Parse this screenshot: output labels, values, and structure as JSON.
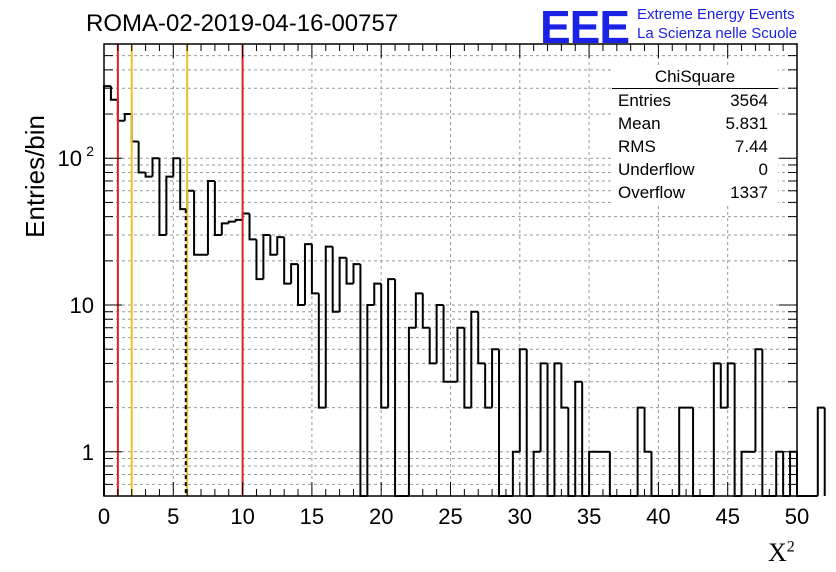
{
  "title": "ROMA-02-2019-04-16-00757",
  "logo": {
    "mark": "EEE",
    "line1": "Extreme Energy Events",
    "line2": "La Scienza nelle Scuole",
    "color": "#1a22e6"
  },
  "stats_box": {
    "title": "ChiSquare",
    "rows": [
      {
        "key": "Entries",
        "value": "3564"
      },
      {
        "key": "Mean",
        "value": "5.831"
      },
      {
        "key": "RMS",
        "value": "7.44"
      },
      {
        "key": "Underflow",
        "value": "0"
      },
      {
        "key": "Overflow",
        "value": "1337"
      }
    ]
  },
  "axes": {
    "ylabel": "Entries/bin",
    "xlabel": "X",
    "xlabel_sup": "2"
  },
  "chart_data": {
    "type": "bar",
    "subtype": "histogram-step",
    "y_scale": "log",
    "xlim": [
      0,
      50
    ],
    "ylim": [
      0.5,
      600
    ],
    "x_ticks": [
      0,
      5,
      10,
      15,
      20,
      25,
      30,
      35,
      40,
      45,
      50
    ],
    "y_tick_labels": [
      {
        "value": 1,
        "label": "1"
      },
      {
        "value": 10,
        "label": "10"
      },
      {
        "value": 100,
        "label": "10",
        "exponent": "2"
      }
    ],
    "grid": true,
    "bin_width": 0.5,
    "bin_start": 0,
    "values": [
      310,
      250,
      180,
      200,
      130,
      80,
      75,
      100,
      30,
      75,
      100,
      45,
      60,
      22,
      22,
      70,
      30,
      36,
      37,
      38,
      42,
      28,
      15,
      30,
      22,
      29,
      14,
      19,
      10,
      26,
      12,
      2,
      25,
      9,
      21,
      14,
      19,
      0,
      10,
      14,
      2,
      15,
      0,
      0,
      7,
      12,
      7,
      4,
      10,
      3,
      3,
      7,
      2,
      9,
      4,
      2,
      5,
      0,
      0,
      1,
      5,
      0,
      1,
      4,
      0,
      4,
      2,
      0,
      3,
      0,
      1,
      1,
      1,
      0,
      0,
      0,
      0,
      2,
      1,
      0,
      0,
      0,
      0,
      2,
      2,
      0,
      0,
      0,
      4,
      2,
      4,
      0,
      1,
      1,
      5,
      0,
      0,
      1,
      0,
      1,
      0,
      0,
      0,
      2
    ],
    "vertical_lines": [
      {
        "x": 1,
        "color": "#e02020",
        "style": "solid"
      },
      {
        "x": 2,
        "color": "#f0c020",
        "style": "solid"
      },
      {
        "x": 6,
        "color": "#f0c020",
        "style": "solid"
      },
      {
        "x": 10,
        "color": "#e02020",
        "style": "solid"
      },
      {
        "x": 5.9,
        "color": "#000000",
        "style": "dashed"
      }
    ]
  }
}
